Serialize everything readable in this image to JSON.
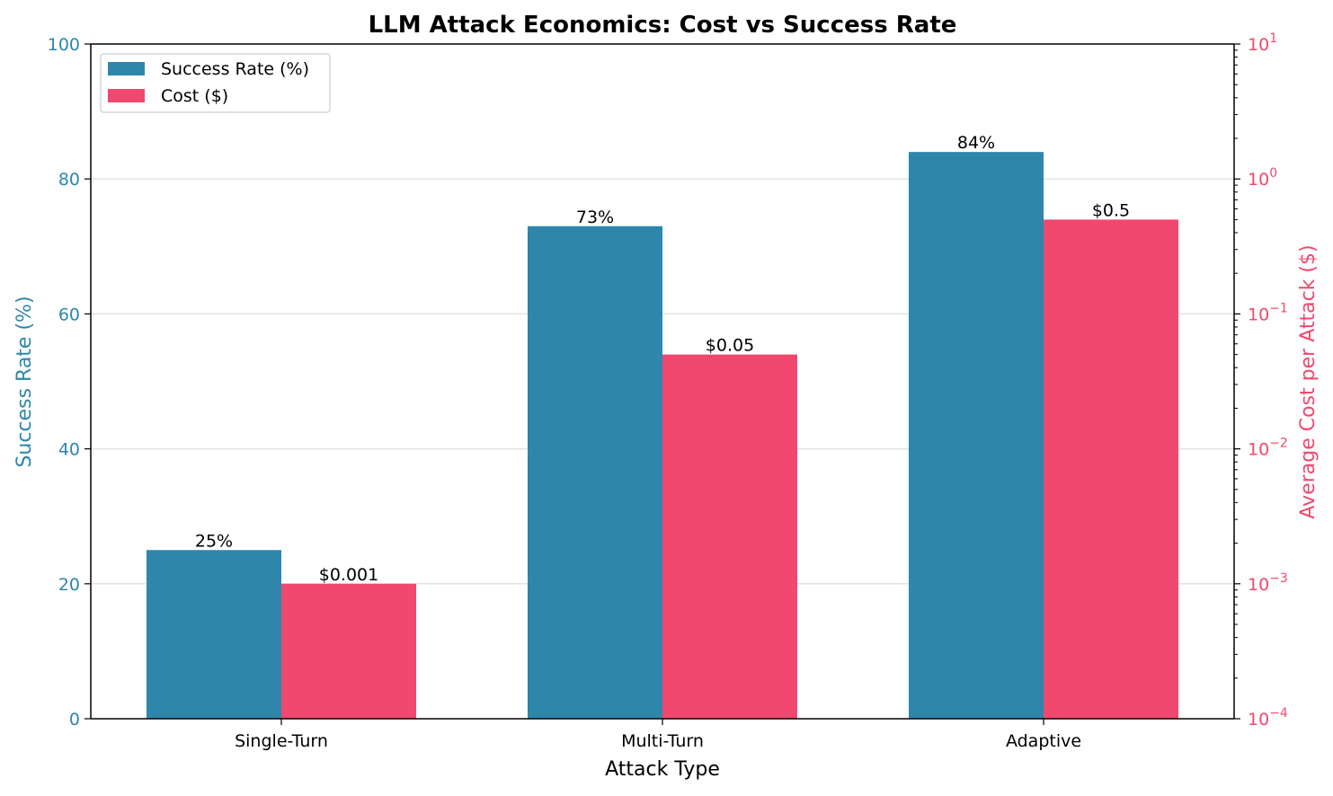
{
  "chart_data": {
    "type": "bar",
    "title": "LLM Attack Economics: Cost vs Success Rate",
    "xlabel": "Attack Type",
    "categories": [
      "Single-Turn",
      "Multi-Turn",
      "Adaptive"
    ],
    "y_left": {
      "label": "Success Rate (%)",
      "lim": [
        0,
        100
      ],
      "ticks": [
        0,
        20,
        40,
        60,
        80,
        100
      ],
      "scale": "linear",
      "color": "#2e86ab"
    },
    "y_right": {
      "label": "Average Cost per Attack ($)",
      "lim": [
        0.0001,
        10
      ],
      "scale": "log",
      "tick_exponents": [
        -4,
        -3,
        -2,
        -1,
        0,
        1
      ],
      "color": "#f0486e"
    },
    "series": [
      {
        "name": "Success Rate (%)",
        "axis": "left",
        "color": "#2e86ab",
        "values": [
          25,
          73,
          84
        ],
        "labels": [
          "25%",
          "73%",
          "84%"
        ]
      },
      {
        "name": "Cost ($)",
        "axis": "right",
        "color": "#f0486e",
        "values": [
          0.001,
          0.05,
          0.5
        ],
        "labels": [
          "$0.001",
          "$0.05",
          "$0.5"
        ]
      }
    ],
    "grid": "horizontal",
    "legend_position": "top-left"
  }
}
